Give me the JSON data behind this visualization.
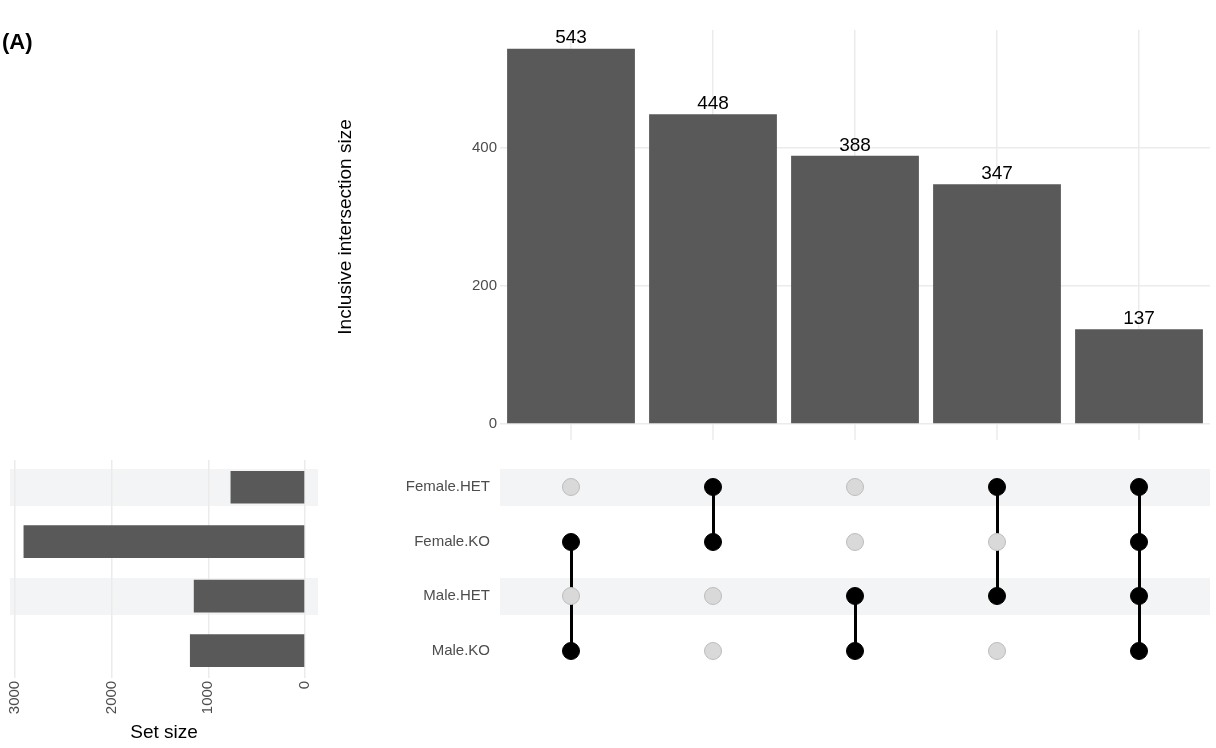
{
  "chart_data": [
    {
      "type": "bar",
      "ylabel": "Inclusive intersection size",
      "categories": [
        null,
        null,
        null,
        null,
        null
      ],
      "values": [
        543,
        448,
        388,
        347,
        137
      ],
      "color": "#595959",
      "ylim": [
        0,
        570
      ],
      "yticks": [
        0,
        200,
        400
      ],
      "grid": true,
      "data_labels": true
    },
    {
      "type": "bar",
      "title": "(A)",
      "orientation": "horizontal",
      "xlabel": "Set size",
      "categories": [
        "Female.HET",
        "Female.KO",
        "Male.HET",
        "Male.KO"
      ],
      "values": [
        770,
        2910,
        1150,
        1190
      ],
      "color": "#595959",
      "xlim": [
        3050,
        -134
      ],
      "xticks": [
        0,
        1000,
        2000,
        3000
      ],
      "grid": "x"
    }
  ]
}
